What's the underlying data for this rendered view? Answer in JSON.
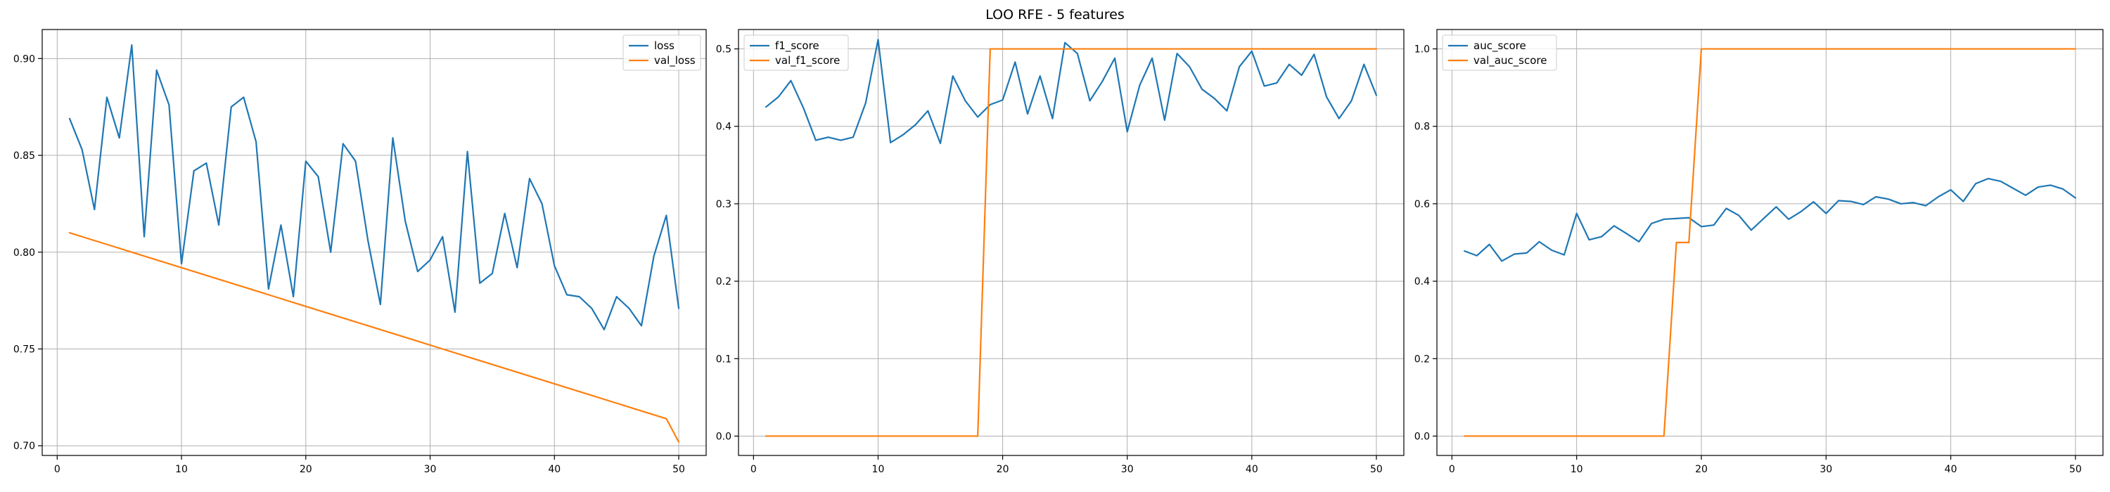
{
  "figure_title": "LOO RFE - 5 features",
  "colors": {
    "series_1": "#1f77b4",
    "series_2": "#ff7f0e"
  },
  "chart_data": [
    {
      "type": "line",
      "grid": true,
      "legend_position": "upper right",
      "xlim": [
        1,
        50
      ],
      "ylim": [
        0.695,
        0.915
      ],
      "xticks": [
        0,
        10,
        20,
        30,
        40,
        50
      ],
      "yticks": [
        0.7,
        0.75,
        0.8,
        0.85,
        0.9
      ],
      "ytick_labels": [
        "0.70",
        "0.75",
        "0.80",
        "0.85",
        "0.90"
      ],
      "x": [
        1,
        2,
        3,
        4,
        5,
        6,
        7,
        8,
        9,
        10,
        11,
        12,
        13,
        14,
        15,
        16,
        17,
        18,
        19,
        20,
        21,
        22,
        23,
        24,
        25,
        26,
        27,
        28,
        29,
        30,
        31,
        32,
        33,
        34,
        35,
        36,
        37,
        38,
        39,
        40,
        41,
        42,
        43,
        44,
        45,
        46,
        47,
        48,
        49,
        50
      ],
      "series": [
        {
          "name": "loss",
          "values": [
            0.869,
            0.853,
            0.822,
            0.88,
            0.859,
            0.907,
            0.808,
            0.894,
            0.876,
            0.794,
            0.842,
            0.846,
            0.814,
            0.875,
            0.88,
            0.857,
            0.781,
            0.814,
            0.777,
            0.847,
            0.839,
            0.8,
            0.856,
            0.847,
            0.806,
            0.773,
            0.859,
            0.816,
            0.79,
            0.796,
            0.808,
            0.769,
            0.852,
            0.784,
            0.789,
            0.82,
            0.792,
            0.838,
            0.825,
            0.793,
            0.778,
            0.777,
            0.771,
            0.76,
            0.777,
            0.771,
            0.762,
            0.798,
            0.819,
            0.771
          ]
        },
        {
          "name": "val_loss",
          "values": [
            0.81,
            0.808,
            0.806,
            0.804,
            0.802,
            0.8,
            0.798,
            0.796,
            0.794,
            0.792,
            0.79,
            0.788,
            0.786,
            0.784,
            0.782,
            0.78,
            0.778,
            0.776,
            0.774,
            0.772,
            0.77,
            0.768,
            0.766,
            0.764,
            0.762,
            0.76,
            0.758,
            0.756,
            0.754,
            0.752,
            0.75,
            0.748,
            0.746,
            0.744,
            0.742,
            0.74,
            0.738,
            0.736,
            0.734,
            0.732,
            0.73,
            0.728,
            0.726,
            0.724,
            0.722,
            0.72,
            0.718,
            0.716,
            0.714,
            0.702
          ]
        }
      ]
    },
    {
      "type": "line",
      "grid": true,
      "legend_position": "upper left",
      "xlim": [
        1,
        50
      ],
      "ylim": [
        -0.025,
        0.525
      ],
      "xticks": [
        0,
        10,
        20,
        30,
        40,
        50
      ],
      "yticks": [
        0.0,
        0.1,
        0.2,
        0.3,
        0.4,
        0.5
      ],
      "ytick_labels": [
        "0.0",
        "0.1",
        "0.2",
        "0.3",
        "0.4",
        "0.5"
      ],
      "x": [
        1,
        2,
        3,
        4,
        5,
        6,
        7,
        8,
        9,
        10,
        11,
        12,
        13,
        14,
        15,
        16,
        17,
        18,
        19,
        20,
        21,
        22,
        23,
        24,
        25,
        26,
        27,
        28,
        29,
        30,
        31,
        32,
        33,
        34,
        35,
        36,
        37,
        38,
        39,
        40,
        41,
        42,
        43,
        44,
        45,
        46,
        47,
        48,
        49,
        50
      ],
      "series": [
        {
          "name": "f1_score",
          "values": [
            0.425,
            0.438,
            0.459,
            0.424,
            0.382,
            0.386,
            0.382,
            0.386,
            0.43,
            0.512,
            0.379,
            0.389,
            0.402,
            0.42,
            0.378,
            0.465,
            0.433,
            0.412,
            0.428,
            0.434,
            0.483,
            0.416,
            0.465,
            0.41,
            0.508,
            0.494,
            0.433,
            0.458,
            0.488,
            0.393,
            0.453,
            0.488,
            0.408,
            0.494,
            0.477,
            0.448,
            0.436,
            0.42,
            0.477,
            0.497,
            0.452,
            0.456,
            0.48,
            0.466,
            0.493,
            0.438,
            0.41,
            0.433,
            0.48,
            0.44
          ]
        },
        {
          "name": "val_f1_score",
          "values": [
            0,
            0,
            0,
            0,
            0,
            0,
            0,
            0,
            0,
            0,
            0,
            0,
            0,
            0,
            0,
            0,
            0,
            0,
            0.5,
            0.5,
            0.5,
            0.5,
            0.5,
            0.5,
            0.5,
            0.5,
            0.5,
            0.5,
            0.5,
            0.5,
            0.5,
            0.5,
            0.5,
            0.5,
            0.5,
            0.5,
            0.5,
            0.5,
            0.5,
            0.5,
            0.5,
            0.5,
            0.5,
            0.5,
            0.5,
            0.5,
            0.5,
            0.5,
            0.5,
            0.5
          ]
        }
      ]
    },
    {
      "type": "line",
      "grid": true,
      "legend_position": "upper left",
      "xlim": [
        1,
        50
      ],
      "ylim": [
        -0.05,
        1.05
      ],
      "xticks": [
        0,
        10,
        20,
        30,
        40,
        50
      ],
      "yticks": [
        0.0,
        0.2,
        0.4,
        0.6,
        0.8,
        1.0
      ],
      "ytick_labels": [
        "0.0",
        "0.2",
        "0.4",
        "0.6",
        "0.8",
        "1.0"
      ],
      "x": [
        1,
        2,
        3,
        4,
        5,
        6,
        7,
        8,
        9,
        10,
        11,
        12,
        13,
        14,
        15,
        16,
        17,
        18,
        19,
        20,
        21,
        22,
        23,
        24,
        25,
        26,
        27,
        28,
        29,
        30,
        31,
        32,
        33,
        34,
        35,
        36,
        37,
        38,
        39,
        40,
        41,
        42,
        43,
        44,
        45,
        46,
        47,
        48,
        49,
        50
      ],
      "series": [
        {
          "name": "auc_score",
          "values": [
            0.478,
            0.466,
            0.495,
            0.452,
            0.47,
            0.473,
            0.502,
            0.48,
            0.468,
            0.575,
            0.507,
            0.515,
            0.543,
            0.523,
            0.502,
            0.549,
            0.56,
            0.562,
            0.564,
            0.541,
            0.545,
            0.588,
            0.57,
            0.532,
            0.562,
            0.592,
            0.56,
            0.58,
            0.605,
            0.575,
            0.608,
            0.606,
            0.598,
            0.618,
            0.612,
            0.6,
            0.603,
            0.595,
            0.618,
            0.636,
            0.606,
            0.652,
            0.665,
            0.658,
            0.64,
            0.622,
            0.643,
            0.648,
            0.638,
            0.615
          ]
        },
        {
          "name": "val_auc_score",
          "values": [
            0,
            0,
            0,
            0,
            0,
            0,
            0,
            0,
            0,
            0,
            0,
            0,
            0,
            0,
            0,
            0,
            0,
            0.5,
            0.5,
            1,
            1,
            1,
            1,
            1,
            1,
            1,
            1,
            1,
            1,
            1,
            1,
            1,
            1,
            1,
            1,
            1,
            1,
            1,
            1,
            1,
            1,
            1,
            1,
            1,
            1,
            1,
            1,
            1,
            1,
            1
          ]
        }
      ]
    }
  ]
}
